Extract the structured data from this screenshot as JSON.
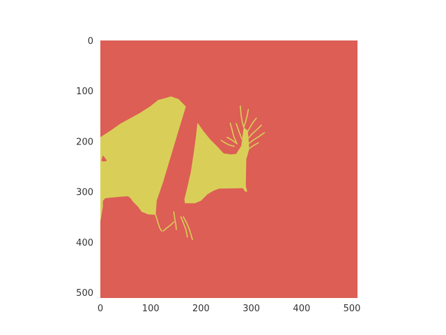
{
  "chart_data": {
    "type": "heatmap",
    "title": "",
    "xlabel": "",
    "ylabel": "",
    "xlim": [
      0,
      511
    ],
    "ylim": [
      511,
      0
    ],
    "x_ticks": [
      0,
      100,
      200,
      300,
      400,
      500
    ],
    "y_ticks": [
      0,
      100,
      200,
      300,
      400,
      500
    ],
    "grid": false,
    "legend": "none",
    "classes": [
      {
        "value": 0,
        "color": "#dc5e55"
      },
      {
        "value": 1,
        "color": "#d9cf58"
      }
    ],
    "regions": [
      {
        "value": 1,
        "shape": "main-left",
        "polygon": [
          [
            0,
            192
          ],
          [
            20,
            179
          ],
          [
            40,
            165
          ],
          [
            60,
            154
          ],
          [
            80,
            143
          ],
          [
            100,
            130
          ],
          [
            115,
            118
          ],
          [
            130,
            114
          ],
          [
            140,
            111
          ],
          [
            155,
            116
          ],
          [
            170,
            131
          ],
          [
            155,
            180
          ],
          [
            140,
            230
          ],
          [
            125,
            280
          ],
          [
            112,
            318
          ],
          [
            110,
            346
          ],
          [
            95,
            345
          ],
          [
            82,
            340
          ],
          [
            75,
            330
          ],
          [
            65,
            320
          ],
          [
            60,
            313
          ],
          [
            55,
            309
          ],
          [
            40,
            310
          ],
          [
            20,
            312
          ],
          [
            10,
            313
          ],
          [
            5,
            318
          ],
          [
            5,
            330
          ],
          [
            0,
            360
          ]
        ]
      },
      {
        "value": 1,
        "shape": "main-right",
        "polygon": [
          [
            193,
            163
          ],
          [
            205,
            180
          ],
          [
            218,
            196
          ],
          [
            232,
            210
          ],
          [
            245,
            224
          ],
          [
            260,
            226
          ],
          [
            270,
            225
          ],
          [
            280,
            209
          ],
          [
            285,
            172
          ],
          [
            293,
            179
          ],
          [
            296,
            215
          ],
          [
            290,
            236
          ],
          [
            289,
            289
          ],
          [
            292,
            300
          ],
          [
            288,
            300
          ],
          [
            283,
            293
          ],
          [
            236,
            294
          ],
          [
            225,
            298
          ],
          [
            213,
            305
          ],
          [
            200,
            318
          ],
          [
            188,
            323
          ],
          [
            168,
            323
          ],
          [
            167,
            315
          ],
          [
            172,
            295
          ],
          [
            180,
            260
          ],
          [
            186,
            220
          ],
          [
            190,
            190
          ]
        ]
      },
      {
        "value": 1,
        "shape": "upper-right-branches",
        "polyline_set": [
          [
            [
              285,
              172
            ],
            [
              282,
              162
            ],
            [
              280,
              150
            ],
            [
              279,
              140
            ],
            [
              278,
              130
            ]
          ],
          [
            [
              285,
              172
            ],
            [
              289,
              160
            ],
            [
              292,
              148
            ],
            [
              294,
              137
            ]
          ],
          [
            [
              290,
              185
            ],
            [
              296,
              175
            ],
            [
              303,
              163
            ],
            [
              310,
              154
            ]
          ],
          [
            [
              293,
              195
            ],
            [
              302,
              185
            ],
            [
              312,
              176
            ],
            [
              320,
              168
            ]
          ],
          [
            [
              294,
              205
            ],
            [
              305,
              197
            ],
            [
              316,
              190
            ],
            [
              326,
              183
            ]
          ],
          [
            [
              295,
              215
            ],
            [
              305,
              208
            ],
            [
              314,
              203
            ]
          ],
          [
            [
              270,
              202
            ],
            [
              265,
              190
            ],
            [
              262,
              178
            ],
            [
              258,
              164
            ]
          ],
          [
            [
              266,
              210
            ],
            [
              255,
              207
            ],
            [
              246,
              202
            ],
            [
              240,
              198
            ]
          ],
          [
            [
              272,
              205
            ],
            [
              262,
              198
            ],
            [
              252,
              192
            ]
          ],
          [
            [
              281,
              195
            ],
            [
              276,
              182
            ],
            [
              270,
              165
            ]
          ]
        ]
      },
      {
        "value": 1,
        "shape": "lower-branches",
        "polyline_set": [
          [
            [
              110,
              346
            ],
            [
              114,
              360
            ],
            [
              118,
              372
            ],
            [
              122,
              378
            ]
          ],
          [
            [
              125,
              378
            ],
            [
              132,
              372
            ],
            [
              140,
              366
            ],
            [
              146,
              360
            ]
          ],
          [
            [
              146,
              340
            ],
            [
              148,
              355
            ],
            [
              150,
              365
            ],
            [
              151,
              375
            ]
          ],
          [
            [
              160,
              350
            ],
            [
              165,
              362
            ],
            [
              170,
              375
            ],
            [
              173,
              390
            ]
          ],
          [
            [
              165,
              350
            ],
            [
              172,
              363
            ],
            [
              178,
              378
            ],
            [
              183,
              395
            ]
          ]
        ]
      },
      {
        "value": 1,
        "shape": "left-strip",
        "polygon": [
          [
            2,
            232
          ],
          [
            4,
            218
          ],
          [
            8,
            222
          ],
          [
            10,
            238
          ],
          [
            9,
            270
          ],
          [
            8,
            300
          ],
          [
            5,
            320
          ],
          [
            2,
            323
          ]
        ]
      },
      {
        "value": 0,
        "shape": "left-notch",
        "polygon": [
          [
            2,
            238
          ],
          [
            5,
            228
          ],
          [
            10,
            234
          ],
          [
            13,
            238
          ],
          [
            11,
            240
          ],
          [
            4,
            240
          ]
        ]
      }
    ]
  }
}
